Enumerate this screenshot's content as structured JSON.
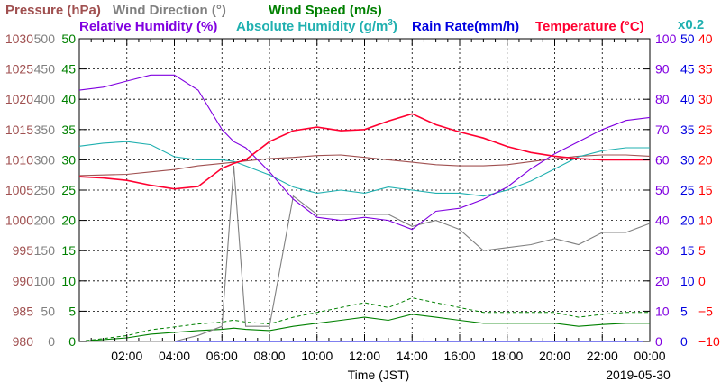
{
  "chart_data": {
    "type": "line",
    "date": "2019-05-30",
    "xlabel": "Time (JST)",
    "x_ticks": [
      "02:00",
      "04:00",
      "06:00",
      "08:00",
      "10:00",
      "12:00",
      "14:00",
      "16:00",
      "18:00",
      "20:00",
      "22:00",
      "00:00"
    ],
    "legend": {
      "pressure": "Pressure (hPa)",
      "wind_direction": "Wind Direction (°)",
      "wind_speed": "Wind Speed (m/s)",
      "relative_humidity": "Relative Humidity (%)",
      "absolute_humidity_pre": "Absolute Humidity (g/m",
      "absolute_humidity_sup": "3",
      "absolute_humidity_post": ")",
      "rain_rate": "Rain Rate(mm/h)",
      "temperature": "Temperature (°C)",
      "rain_multiplier": "x0.2"
    },
    "axes": {
      "pressure": {
        "min": 980,
        "max": 1030,
        "ticks": [
          "980",
          "985",
          "990",
          "995",
          "1000",
          "1005",
          "1010",
          "1015",
          "1020",
          "1025",
          "1030"
        ],
        "color": "#a05050"
      },
      "wind_direction": {
        "min": 0,
        "max": 500,
        "ticks": [
          "0",
          "50",
          "100",
          "150",
          "200",
          "250",
          "300",
          "350",
          "400",
          "450",
          "500"
        ],
        "color": "#808080"
      },
      "wind_speed": {
        "min": 0,
        "max": 50,
        "ticks": [
          "0",
          "5",
          "10",
          "15",
          "20",
          "25",
          "30",
          "35",
          "40",
          "45",
          "50"
        ],
        "color": "#008000"
      },
      "relative_humidity": {
        "min": 0,
        "max": 100,
        "ticks": [
          "0",
          "10",
          "20",
          "30",
          "40",
          "50",
          "60",
          "70",
          "80",
          "90",
          "100"
        ],
        "color": "#8000e0"
      },
      "rain_rate": {
        "min": 0,
        "max": 50,
        "ticks": [
          "0",
          "5",
          "10",
          "15",
          "20",
          "25",
          "30",
          "35",
          "40",
          "45",
          "50"
        ],
        "color": "#0000e0"
      },
      "temperature": {
        "min": -10,
        "max": 40,
        "ticks": [
          "−10",
          "−5",
          "0",
          "5",
          "10",
          "15",
          "20",
          "25",
          "30",
          "35",
          "40"
        ],
        "color": "#ff0000"
      }
    },
    "colors": {
      "pressure": "#a05050",
      "wind_direction": "#808080",
      "wind_speed": "#008000",
      "relative_humidity": "#8000e0",
      "absolute_humidity": "#20b0b0",
      "rain_rate": "#0000e0",
      "temperature": "#ff0030",
      "rain_multiplier": "#20b0b0"
    },
    "x_hours": [
      0,
      1,
      2,
      3,
      4,
      5,
      6,
      6.5,
      7,
      8,
      9,
      10,
      11,
      12,
      13,
      14,
      15,
      16,
      17,
      18,
      19,
      20,
      21,
      22,
      23,
      24
    ],
    "series": [
      {
        "key": "pressure",
        "values": [
          1007.4,
          1007.5,
          1007.6,
          1008.0,
          1008.4,
          1009.0,
          1009.4,
          1009.6,
          1009.8,
          1010.2,
          1010.4,
          1010.7,
          1010.8,
          1010.4,
          1010.0,
          1009.6,
          1009.2,
          1009.0,
          1009.0,
          1009.2,
          1009.7,
          1010.2,
          1010.6,
          1010.8,
          1010.8,
          1010.6
        ]
      },
      {
        "key": "relative_humidity",
        "values": [
          83,
          84,
          86,
          88,
          88,
          83,
          70,
          66,
          64,
          56,
          47,
          41,
          40,
          41,
          40,
          37,
          43,
          44,
          47,
          51,
          57,
          62,
          66,
          70,
          73,
          74
        ]
      },
      {
        "key": "absolute_humidity",
        "values": [
          64.5,
          65.5,
          66,
          65,
          61,
          60,
          60,
          59.5,
          58,
          55,
          51,
          49,
          50,
          49,
          51,
          50,
          49,
          49,
          48,
          50,
          53,
          57,
          61,
          63,
          64,
          64
        ]
      },
      {
        "key": "temperature",
        "values": [
          17.2,
          17.0,
          16.6,
          15.8,
          15.2,
          15.6,
          18.6,
          19.4,
          20.0,
          23.0,
          24.8,
          25.4,
          24.8,
          25.0,
          26.4,
          27.6,
          25.8,
          24.6,
          23.6,
          22.2,
          21.2,
          20.6,
          20.2,
          20.0,
          20.0,
          20.0
        ]
      },
      {
        "key": "wind_direction",
        "values": [
          0,
          0,
          0,
          0,
          0,
          10,
          25,
          290,
          25,
          25,
          240,
          210,
          210,
          210,
          210,
          190,
          200,
          185,
          150,
          155,
          160,
          170,
          160,
          180,
          180,
          195
        ]
      },
      {
        "key": "wind_speed",
        "values": [
          0,
          0.3,
          0.6,
          1.2,
          1.5,
          1.8,
          2.0,
          2.2,
          2.0,
          1.8,
          2.5,
          3.0,
          3.5,
          4.0,
          3.5,
          4.5,
          4.0,
          3.5,
          3.0,
          3.0,
          3.0,
          3.0,
          2.5,
          2.8,
          3.0,
          3.0
        ]
      },
      {
        "key": "rain_rate",
        "values": [
          0,
          0,
          0,
          0,
          0,
          0,
          0,
          0,
          0,
          0,
          0,
          0,
          0,
          0,
          0,
          0,
          0,
          0,
          0,
          0,
          0,
          0,
          0,
          0,
          0,
          0
        ]
      }
    ]
  }
}
